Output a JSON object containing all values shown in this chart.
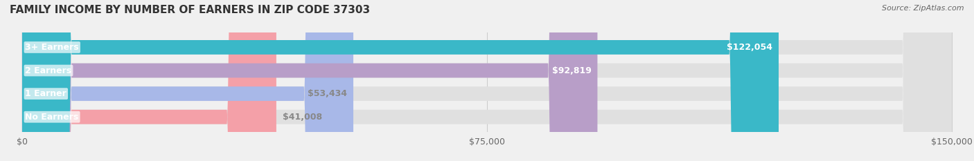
{
  "title": "FAMILY INCOME BY NUMBER OF EARNERS IN ZIP CODE 37303",
  "source": "Source: ZipAtlas.com",
  "categories": [
    "No Earners",
    "1 Earner",
    "2 Earners",
    "3+ Earners"
  ],
  "values": [
    41008,
    53434,
    92819,
    122054
  ],
  "bar_colors": [
    "#f4a0a8",
    "#a8b8e8",
    "#b89ec8",
    "#3ab8c8"
  ],
  "label_colors": [
    "#888888",
    "#888888",
    "#ffffff",
    "#ffffff"
  ],
  "label_bg": [
    "#f4a0a8",
    "#a8b8e8",
    "#b89ec8",
    "#3ab8c8"
  ],
  "value_labels": [
    "$41,008",
    "$53,434",
    "$92,819",
    "$122,054"
  ],
  "xlim": [
    0,
    150000
  ],
  "xticks": [
    0,
    75000,
    150000
  ],
  "xtick_labels": [
    "$0",
    "$75,000",
    "$150,000"
  ],
  "background_color": "#f0f0f0",
  "bar_bg_color": "#e8e8e8",
  "title_fontsize": 11,
  "source_fontsize": 8,
  "label_fontsize": 9,
  "value_fontsize": 9,
  "tick_fontsize": 9
}
